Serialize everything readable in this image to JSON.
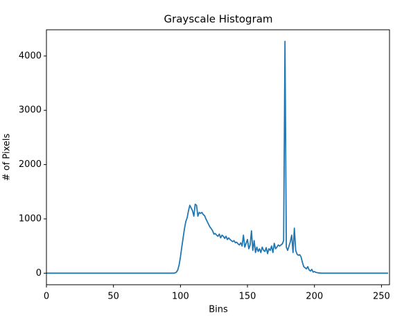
{
  "chart_data": {
    "type": "line",
    "title": "Grayscale Histogram",
    "x_label": "Bins",
    "y_label": "# of Pixels",
    "x": [
      0,
      1,
      2,
      3,
      4,
      5,
      6,
      7,
      8,
      9,
      10,
      11,
      12,
      13,
      14,
      15,
      16,
      17,
      18,
      19,
      20,
      21,
      22,
      23,
      24,
      25,
      26,
      27,
      28,
      29,
      30,
      31,
      32,
      33,
      34,
      35,
      36,
      37,
      38,
      39,
      40,
      41,
      42,
      43,
      44,
      45,
      46,
      47,
      48,
      49,
      50,
      51,
      52,
      53,
      54,
      55,
      56,
      57,
      58,
      59,
      60,
      61,
      62,
      63,
      64,
      65,
      66,
      67,
      68,
      69,
      70,
      71,
      72,
      73,
      74,
      75,
      76,
      77,
      78,
      79,
      80,
      81,
      82,
      83,
      84,
      85,
      86,
      87,
      88,
      89,
      90,
      91,
      92,
      93,
      94,
      95,
      96,
      97,
      98,
      99,
      100,
      101,
      102,
      103,
      104,
      105,
      106,
      107,
      108,
      109,
      110,
      111,
      112,
      113,
      114,
      115,
      116,
      117,
      118,
      119,
      120,
      121,
      122,
      123,
      124,
      125,
      126,
      127,
      128,
      129,
      130,
      131,
      132,
      133,
      134,
      135,
      136,
      137,
      138,
      139,
      140,
      141,
      142,
      143,
      144,
      145,
      146,
      147,
      148,
      149,
      150,
      151,
      152,
      153,
      154,
      155,
      156,
      157,
      158,
      159,
      160,
      161,
      162,
      163,
      164,
      165,
      166,
      167,
      168,
      169,
      170,
      171,
      172,
      173,
      174,
      175,
      176,
      177,
      178,
      179,
      180,
      181,
      182,
      183,
      184,
      185,
      186,
      187,
      188,
      189,
      190,
      191,
      192,
      193,
      194,
      195,
      196,
      197,
      198,
      199,
      200,
      201,
      202,
      203,
      204,
      205,
      206,
      207,
      208,
      209,
      210,
      211,
      212,
      213,
      214,
      215,
      216,
      217,
      218,
      219,
      220,
      221,
      222,
      223,
      224,
      225,
      226,
      227,
      228,
      229,
      230,
      231,
      232,
      233,
      234,
      235,
      236,
      237,
      238,
      239,
      240,
      241,
      242,
      243,
      244,
      245,
      246,
      247,
      248,
      249,
      250,
      251,
      252,
      253,
      254,
      255
    ],
    "values": [
      0,
      0,
      0,
      0,
      0,
      0,
      0,
      0,
      0,
      0,
      0,
      0,
      0,
      0,
      0,
      0,
      0,
      0,
      0,
      0,
      0,
      0,
      0,
      0,
      0,
      0,
      0,
      0,
      0,
      0,
      0,
      0,
      0,
      0,
      0,
      0,
      0,
      0,
      0,
      0,
      0,
      0,
      0,
      0,
      0,
      0,
      0,
      0,
      0,
      0,
      0,
      0,
      0,
      0,
      0,
      0,
      0,
      0,
      0,
      0,
      0,
      0,
      0,
      0,
      0,
      0,
      0,
      0,
      0,
      0,
      0,
      0,
      0,
      0,
      0,
      0,
      0,
      0,
      0,
      0,
      0,
      0,
      0,
      0,
      0,
      0,
      0,
      0,
      0,
      0,
      0,
      0,
      0,
      0,
      0,
      0,
      5,
      20,
      60,
      150,
      300,
      480,
      650,
      820,
      950,
      1020,
      1150,
      1250,
      1200,
      1150,
      1050,
      1270,
      1250,
      1050,
      1120,
      1100,
      1120,
      1080,
      1060,
      1000,
      950,
      900,
      850,
      820,
      780,
      720,
      730,
      700,
      680,
      720,
      650,
      700,
      680,
      640,
      680,
      620,
      650,
      620,
      600,
      580,
      600,
      560,
      570,
      540,
      520,
      560,
      500,
      700,
      480,
      550,
      620,
      450,
      520,
      780,
      420,
      600,
      380,
      480,
      400,
      450,
      380,
      480,
      420,
      400,
      470,
      360,
      450,
      420,
      500,
      380,
      550,
      450,
      480,
      520,
      500,
      520,
      540,
      600,
      4270,
      480,
      420,
      500,
      580,
      700,
      380,
      830,
      420,
      350,
      330,
      340,
      300,
      200,
      120,
      100,
      80,
      120,
      60,
      40,
      70,
      20,
      30,
      15,
      10,
      5,
      3,
      0,
      0,
      0,
      0,
      0,
      0,
      0,
      0,
      0,
      0,
      0,
      0,
      0,
      0,
      0,
      0,
      0,
      0,
      0,
      0,
      0,
      0,
      0,
      0,
      0,
      0,
      0,
      0,
      0,
      0,
      0,
      0,
      0,
      0,
      0,
      0,
      0,
      0,
      0,
      0,
      0,
      0,
      0,
      0,
      0,
      0,
      0,
      0,
      0,
      0,
      0
    ],
    "color": "#1f77b4",
    "xlim": [
      0,
      256
    ],
    "xticks": [
      0,
      50,
      100,
      150,
      200,
      250
    ],
    "ylim": [
      -213,
      4483
    ],
    "yticks": [
      0,
      1000,
      2000,
      3000,
      4000
    ]
  }
}
